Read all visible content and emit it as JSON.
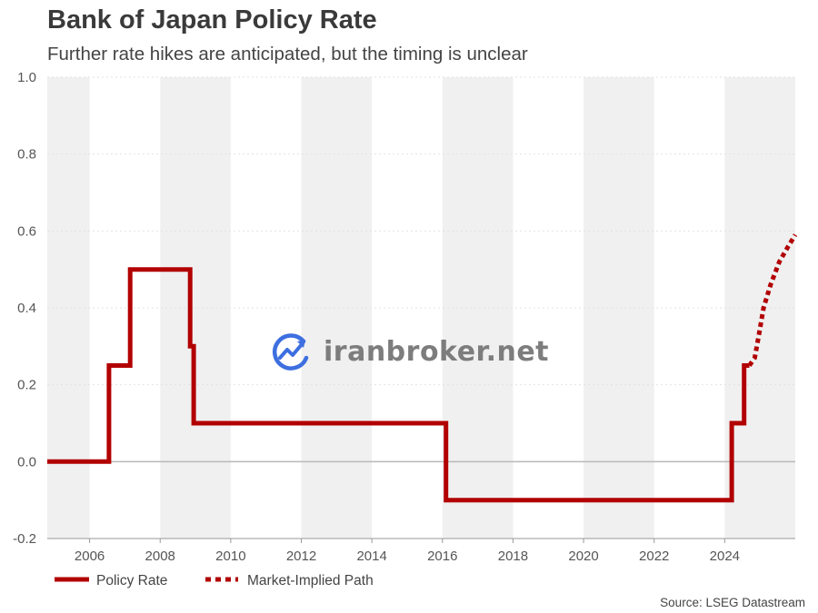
{
  "title": "Bank of Japan Policy Rate",
  "subtitle": "Further rate hikes are anticipated, but the timing is unclear",
  "source": "Source: LSEG Datastream",
  "watermark": "iranbroker.net",
  "colors": {
    "policy": "#b20000",
    "band": "#f0f0f0",
    "zero_line": "#b8b8b8",
    "watermark_blue": "#3d6fe0"
  },
  "chart_data": {
    "type": "line",
    "title": "",
    "xlabel": "",
    "ylabel": "",
    "xlim": [
      2004.8,
      2026.0
    ],
    "ylim": [
      -0.2,
      1.0
    ],
    "x_ticks": [
      "2006",
      "2008",
      "2010",
      "2012",
      "2014",
      "2016",
      "2018",
      "2020",
      "2022",
      "2024"
    ],
    "x_tick_values": [
      2006,
      2008,
      2010,
      2012,
      2014,
      2016,
      2018,
      2020,
      2022,
      2024
    ],
    "y_ticks": [
      "1.0",
      "0.8",
      "0.6",
      "0.4",
      "0.2",
      "0.0",
      "-0.2"
    ],
    "y_tick_values": [
      1.0,
      0.8,
      0.6,
      0.4,
      0.2,
      0.0,
      -0.2
    ],
    "grid": true,
    "legend_position": "bottom-left",
    "series": [
      {
        "name": "Policy Rate",
        "style": "solid",
        "points": [
          [
            2004.8,
            0.0
          ],
          [
            2006.55,
            0.0
          ],
          [
            2006.55,
            0.25
          ],
          [
            2007.15,
            0.25
          ],
          [
            2007.15,
            0.5
          ],
          [
            2008.85,
            0.5
          ],
          [
            2008.85,
            0.3
          ],
          [
            2008.95,
            0.3
          ],
          [
            2008.95,
            0.1
          ],
          [
            2016.1,
            0.1
          ],
          [
            2016.1,
            -0.1
          ],
          [
            2024.2,
            -0.1
          ],
          [
            2024.2,
            0.1
          ],
          [
            2024.55,
            0.1
          ],
          [
            2024.55,
            0.25
          ],
          [
            2024.7,
            0.25
          ]
        ]
      },
      {
        "name": "Market-Implied Path",
        "style": "dotted",
        "points": [
          [
            2024.7,
            0.25
          ],
          [
            2024.85,
            0.27
          ],
          [
            2024.97,
            0.33
          ],
          [
            2025.1,
            0.4
          ],
          [
            2025.3,
            0.46
          ],
          [
            2025.55,
            0.52
          ],
          [
            2025.8,
            0.56
          ],
          [
            2026.0,
            0.59
          ]
        ]
      }
    ]
  }
}
